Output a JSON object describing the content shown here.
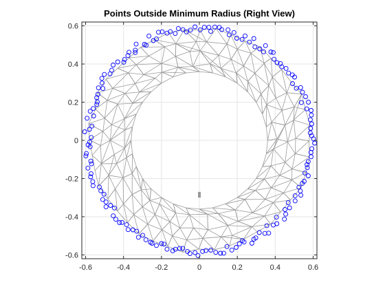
{
  "chart_data": {
    "type": "scatter",
    "title": "Points Outside Minimum Radius (Right View)",
    "xlabel": "",
    "ylabel": "",
    "xlim": [
      -0.62,
      0.62
    ],
    "ylim": [
      -0.62,
      0.62
    ],
    "xticks": [
      -0.6,
      -0.4,
      -0.2,
      0,
      0.2,
      0.4,
      0.6
    ],
    "yticks": [
      -0.6,
      -0.4,
      -0.2,
      0,
      0.2,
      0.4,
      0.6
    ],
    "xtick_labels": [
      "-0.6",
      "-0.4",
      "-0.2",
      "0",
      "0.2",
      "0.4",
      "0.6"
    ],
    "ytick_labels": [
      "-0.6",
      "-0.4",
      "-0.2",
      "0",
      "0.2",
      "0.4",
      "0.6"
    ],
    "grid": true,
    "mesh": {
      "inner_radius": 0.36,
      "outer_radius": 0.6,
      "ring_radii": [
        0.36,
        0.4,
        0.46,
        0.52,
        0.58
      ],
      "segments": [
        32,
        32,
        36,
        40,
        44
      ],
      "color": "#9a9a9a",
      "feature": {
        "x": 0,
        "y_from": -0.27,
        "y_to": -0.3
      }
    },
    "series": [
      {
        "name": "Points outside minimum radius",
        "marker": "circle",
        "color": "#0000ff",
        "count": 176,
        "radius_min": 0.57,
        "radius_max": 0.61
      }
    ]
  }
}
